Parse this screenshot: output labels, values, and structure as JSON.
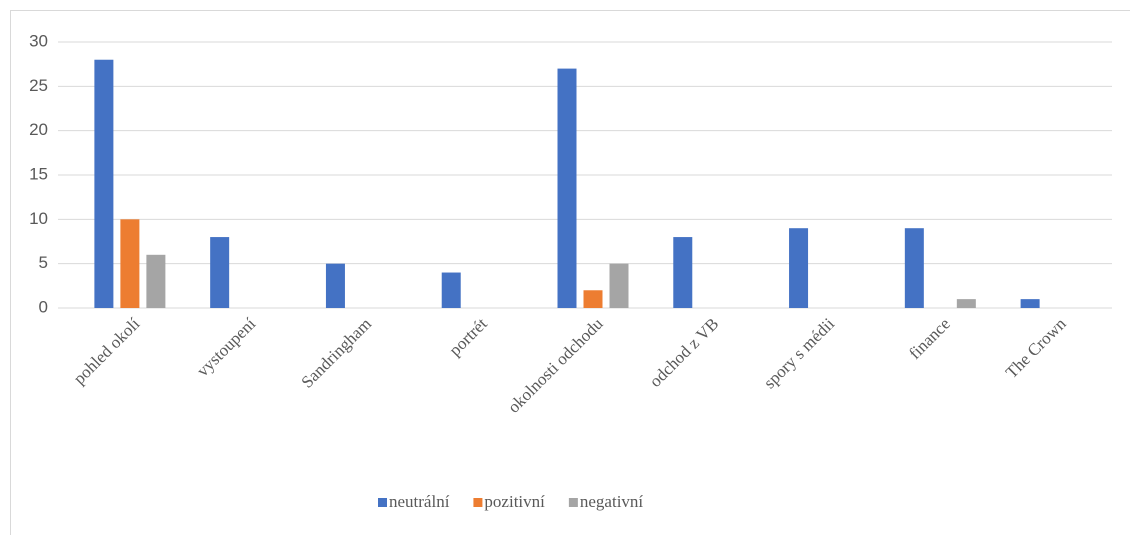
{
  "chart_data": {
    "type": "bar",
    "categories": [
      "pohled okolí",
      "vystoupení",
      "Sandringham",
      "portrét",
      "okolnosti odchodu",
      "odchod z VB",
      "spory s médii",
      "finance",
      "The Crown"
    ],
    "series": [
      {
        "name": "neutrální",
        "color": "#4472c4",
        "values": [
          28,
          8,
          5,
          4,
          27,
          8,
          9,
          9,
          1
        ]
      },
      {
        "name": "pozitivní",
        "color": "#ed7d31",
        "values": [
          10,
          0,
          0,
          0,
          2,
          0,
          0,
          0,
          0
        ]
      },
      {
        "name": "negativní",
        "color": "#a5a5a5",
        "values": [
          6,
          0,
          0,
          0,
          5,
          0,
          0,
          1,
          0
        ]
      }
    ],
    "ylim": [
      0,
      30
    ],
    "yticks": [
      0,
      5,
      10,
      15,
      20,
      25,
      30
    ],
    "grid": true,
    "legend": "bottom"
  }
}
